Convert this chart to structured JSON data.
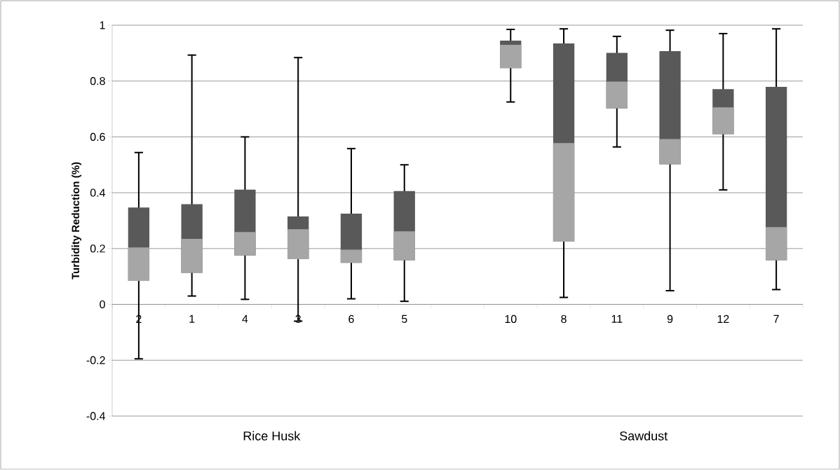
{
  "chart_data": {
    "type": "box",
    "ylabel": "Turbidity Reduction (%)",
    "categories": [
      "2",
      "1",
      "4",
      "3",
      "6",
      "5",
      null,
      "10",
      "8",
      "11",
      "9",
      "12",
      "7"
    ],
    "series": [
      {
        "color": "#595959",
        "boxes": [
          {
            "low": -0.195,
            "q1": 0.084,
            "median": 0.204,
            "q3": 0.347,
            "high": 0.544
          },
          {
            "low": 0.03,
            "q1": 0.113,
            "median": 0.235,
            "q3": 0.359,
            "high": 0.893
          },
          {
            "low": 0.018,
            "q1": 0.175,
            "median": 0.259,
            "q3": 0.411,
            "high": 0.6
          },
          {
            "low": -0.06,
            "q1": 0.162,
            "median": 0.269,
            "q3": 0.315,
            "high": 0.884
          },
          {
            "low": 0.02,
            "q1": 0.149,
            "median": 0.196,
            "q3": 0.325,
            "high": 0.558
          },
          {
            "low": 0.011,
            "q1": 0.158,
            "median": 0.262,
            "q3": 0.406,
            "high": 0.5
          },
          null,
          {
            "low": 0.725,
            "q1": 0.846,
            "median": 0.93,
            "q3": 0.945,
            "high": 0.985
          },
          {
            "low": 0.025,
            "q1": 0.225,
            "median": 0.578,
            "q3": 0.935,
            "high": 0.987
          },
          {
            "low": 0.564,
            "q1": 0.702,
            "median": 0.798,
            "q3": 0.901,
            "high": 0.96
          },
          {
            "low": 0.049,
            "q1": 0.502,
            "median": 0.592,
            "q3": 0.907,
            "high": 0.982
          },
          {
            "low": 0.41,
            "q1": 0.61,
            "median": 0.706,
            "q3": 0.771,
            "high": 0.97
          },
          {
            "low": 0.053,
            "q1": 0.158,
            "median": 0.277,
            "q3": 0.779,
            "high": 0.987
          }
        ]
      }
    ],
    "colors": [
      "#a6a6a6",
      "#a6a6a6",
      "#a6a6a6",
      "#a6a6a6",
      "#a6a6a6",
      "#a6a6a6",
      null,
      "#a6a6a6",
      "#a6a6a6",
      "#a6a6a6",
      "#a6a6a6",
      "#a6a6a6",
      "#a6a6a6"
    ],
    "ylim": [
      -0.4,
      1
    ],
    "yticks": [
      -0.4,
      -0.2,
      0,
      0.2,
      0.4,
      0.6,
      0.8,
      1
    ],
    "grid": "y",
    "annotations": [
      "Rice Husk",
      "Sawdust"
    ]
  }
}
